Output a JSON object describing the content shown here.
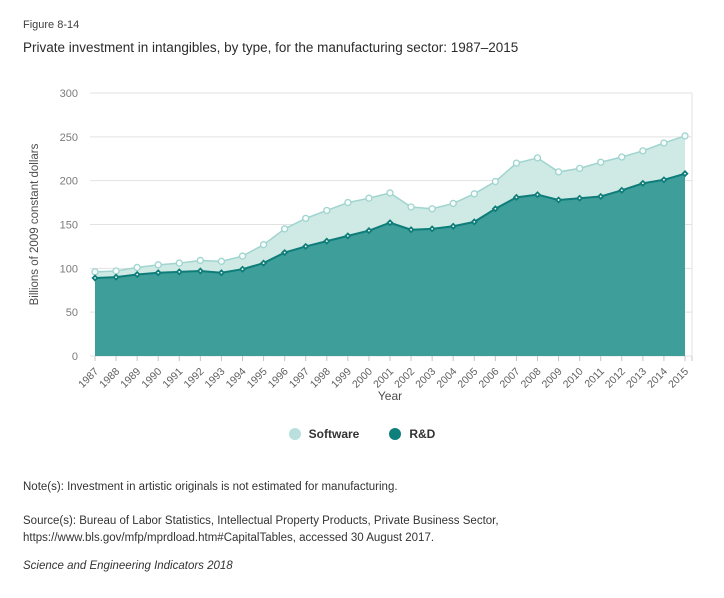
{
  "figure_label": "Figure 8-14",
  "title": "Private investment in intangibles, by type, for the manufacturing sector: 1987–2015",
  "chart_data": {
    "type": "area",
    "stacked": true,
    "title": "Private investment in intangibles, by type, for the manufacturing sector: 1987–2015",
    "xlabel": "Year",
    "ylabel": "Billions of 2009 constant dollars",
    "ylim": [
      0,
      300
    ],
    "yticks": [
      0,
      50,
      100,
      150,
      200,
      250,
      300
    ],
    "grid": true,
    "legend_position": "bottom",
    "categories": [
      "1987",
      "1988",
      "1989",
      "1990",
      "1991",
      "1992",
      "1993",
      "1994",
      "1995",
      "1996",
      "1997",
      "1998",
      "1999",
      "2000",
      "2001",
      "2002",
      "2003",
      "2004",
      "2005",
      "2006",
      "2007",
      "2008",
      "2009",
      "2010",
      "2011",
      "2012",
      "2013",
      "2014",
      "2015"
    ],
    "series": [
      {
        "name": "Software",
        "stack_order": "top",
        "marker": "circle",
        "fill_color": "#cfe9e5",
        "line_color": "#9fd4cf",
        "marker_fill": "#f7fcfb",
        "values": [
          7,
          7,
          8,
          9,
          10,
          12,
          13,
          15,
          21,
          27,
          32,
          35,
          38,
          37,
          34,
          26,
          23,
          26,
          32,
          31,
          39,
          42,
          32,
          34,
          39,
          38,
          37,
          42,
          43
        ]
      },
      {
        "name": "R&D",
        "stack_order": "bottom",
        "marker": "diamond",
        "fill_color": "#3d9e9a",
        "line_color": "#0e7d79",
        "marker_fill": "#0e7d79",
        "values": [
          89,
          90,
          93,
          95,
          96,
          97,
          95,
          99,
          106,
          118,
          125,
          131,
          137,
          143,
          152,
          144,
          145,
          148,
          153,
          168,
          181,
          184,
          178,
          180,
          182,
          189,
          197,
          201,
          208
        ]
      }
    ],
    "stacked_totals": [
      96,
      97,
      101,
      104,
      106,
      109,
      108,
      114,
      127,
      145,
      157,
      166,
      175,
      180,
      186,
      170,
      168,
      174,
      185,
      199,
      220,
      226,
      210,
      214,
      221,
      227,
      234,
      243,
      251
    ],
    "gridline_color": "#e2e2e2",
    "tick_color": "#c4c4c4",
    "axis_text_color": "#7a7a7a"
  },
  "legend": {
    "items": [
      {
        "label": "Software",
        "color": "#b9e0dc"
      },
      {
        "label": "R&D",
        "color": "#0f7f7b"
      }
    ]
  },
  "notes": {
    "note": "Note(s): Investment in artistic originals is not estimated for manufacturing.",
    "source": "Source(s): Bureau of Labor Statistics, Intellectual Property Products, Private Business Sector, https://www.bls.gov/mfp/mprdload.htm#CapitalTables, accessed 30 August 2017.",
    "credit": "Science and Engineering Indicators 2018"
  }
}
